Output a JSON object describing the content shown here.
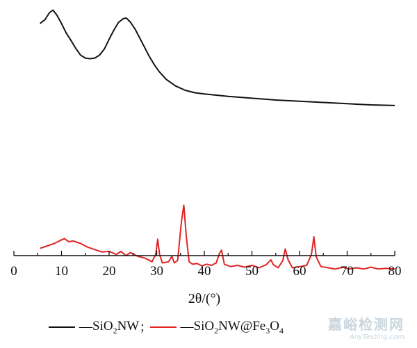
{
  "chart_data": {
    "type": "line",
    "xlabel": "2θ/(°)",
    "xlim": [
      0,
      80
    ],
    "xticks": [
      "0",
      "10",
      "20",
      "30",
      "40",
      "50",
      "60",
      "70",
      "80"
    ],
    "ylabel": "",
    "series": [
      {
        "name": "SiO2NW",
        "color": "#111111",
        "x": [
          5.5,
          6.5,
          7.5,
          8.2,
          9,
          10,
          11,
          12,
          13,
          14,
          15,
          16,
          17,
          18,
          19,
          20,
          21,
          22,
          23,
          23.6,
          24.5,
          25.5,
          26.5,
          27.5,
          28.5,
          29.5,
          30.5,
          32,
          34,
          36,
          38,
          40,
          45,
          50,
          55,
          60,
          65,
          70,
          75,
          80
        ],
        "y": [
          75,
          78,
          84,
          86,
          82,
          75,
          67,
          61,
          54.5,
          49,
          46.5,
          46,
          46.5,
          49,
          54,
          62,
          69.5,
          76,
          79,
          79.5,
          76,
          70,
          62.5,
          55,
          47.5,
          41,
          35.5,
          29,
          23.5,
          20,
          18,
          17,
          15,
          13.5,
          12,
          11,
          10,
          9,
          8,
          7.5
        ]
      },
      {
        "name": "SiO2NW@Fe3O4",
        "color": "#e02424",
        "x": [
          5.5,
          7,
          8.5,
          10,
          10.6,
          11.5,
          12.5,
          14,
          15.5,
          17,
          18.5,
          20,
          21.5,
          22.5,
          23.5,
          24.5,
          26,
          27.5,
          29,
          29.8,
          30.2,
          30.6,
          31.2,
          32.5,
          33.2,
          33.7,
          34.4,
          35.2,
          35.7,
          36.2,
          36.8,
          37.5,
          38.5,
          39.5,
          40.5,
          41.5,
          42.5,
          43.2,
          43.6,
          44.2,
          45.5,
          47,
          48.5,
          50,
          51.5,
          53,
          54,
          54.5,
          55.5,
          56.5,
          57,
          57.6,
          58.5,
          60,
          61.5,
          62.5,
          63,
          63.5,
          64.5,
          66,
          67.5,
          69,
          70.5,
          72,
          73.5,
          75,
          76.5,
          78,
          80
        ],
        "y": [
          -110,
          -108,
          -106,
          -103,
          -102,
          -104.5,
          -104,
          -106,
          -109,
          -111,
          -113,
          -112.5,
          -115,
          -112.5,
          -116,
          -113.5,
          -116.5,
          -118,
          -121,
          -115,
          -102.5,
          -115,
          -122,
          -121,
          -116.5,
          -122,
          -120,
          -88,
          -74.5,
          -100,
          -121,
          -123,
          -122.5,
          -124.5,
          -123,
          -124,
          -122,
          -114,
          -111.5,
          -123,
          -125,
          -124,
          -125.5,
          -124,
          -126,
          -123.5,
          -119.5,
          -123.5,
          -126,
          -120,
          -110.5,
          -119.5,
          -126,
          -125,
          -124,
          -115,
          -100.5,
          -117,
          -125,
          -126,
          -127,
          -125.5,
          -127,
          -126,
          -127,
          -125.5,
          -127,
          -126.5,
          -127
        ]
      }
    ],
    "legend": {
      "placement": "bottom",
      "dash": "—",
      "separator": ";",
      "items": [
        {
          "parts": [
            "SiO",
            "2",
            "NW"
          ],
          "color": "#111111"
        },
        {
          "parts": [
            "SiO",
            "2",
            "NW@Fe",
            "3",
            "O",
            "4"
          ],
          "color": "#e02424"
        }
      ]
    }
  },
  "watermark": {
    "main": "嘉峪检测网",
    "sub": "AnyTesting.com"
  }
}
